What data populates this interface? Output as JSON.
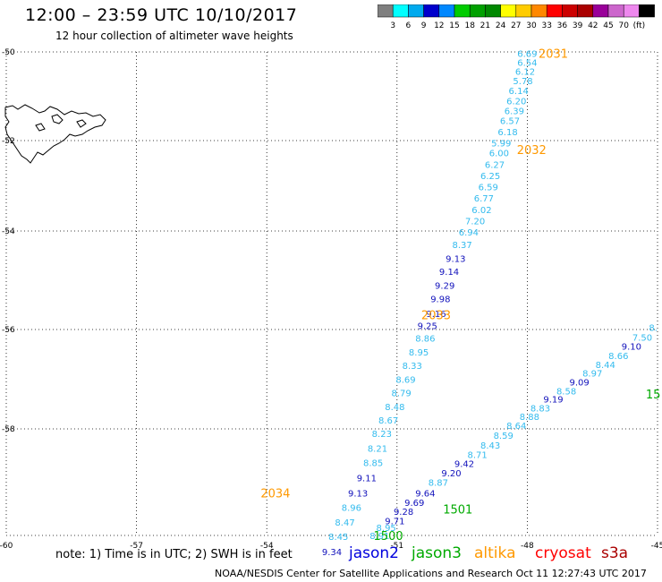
{
  "header": {
    "title": "12:00 – 23:59 UTC 10/10/2017",
    "subtitle": "12 hour collection of altimeter wave heights"
  },
  "colorbar": {
    "labels": [
      "3",
      "6",
      "9",
      "12",
      "15",
      "18",
      "21",
      "24",
      "27",
      "30",
      "33",
      "36",
      "39",
      "42",
      "45",
      "70",
      "(ft)"
    ],
    "colors": [
      "#7f7f7f",
      "#00ffff",
      "#00aaee",
      "#0000cc",
      "#0088ff",
      "#00cc00",
      "#00a000",
      "#008800",
      "#ffff00",
      "#ffcc00",
      "#ff8800",
      "#ff0000",
      "#cc0000",
      "#aa0000",
      "#990099",
      "#cc66cc",
      "#ee88ee",
      "#000000"
    ]
  },
  "footer": {
    "note": "note: 1) Time is in UTC; 2) SWH is in feet",
    "credit": "NOAA/NESDIS Center for Satellite Applications and Research     Oct 11 12:27:43 UTC 2017",
    "satellites": [
      {
        "name": "jason2",
        "color": "#0000dd"
      },
      {
        "name": "jason3",
        "color": "#00aa00"
      },
      {
        "name": "altika",
        "color": "#ff9900"
      },
      {
        "name": "cryosat",
        "color": "#ff0000"
      },
      {
        "name": "s3a",
        "color": "#aa0000"
      }
    ]
  },
  "chart_data": {
    "type": "scatter",
    "xlim": [
      -60,
      -45
    ],
    "ylim": [
      -60,
      -50
    ],
    "x_ticks": [
      "-60",
      "-57",
      "-54",
      "-51",
      "-48",
      "-45"
    ],
    "y_ticks": [
      "-50",
      "-52",
      "-54",
      "-56",
      "-58",
      "-60"
    ],
    "grid": true,
    "track_labels": [
      {
        "text": "2031",
        "lon": -47.4,
        "lat": -50.03,
        "color": "#ff9900"
      },
      {
        "text": "2032",
        "lon": -47.9,
        "lat": -52.2,
        "color": "#ff9900"
      },
      {
        "text": "2033",
        "lon": -50.1,
        "lat": -55.7,
        "color": "#ff9900"
      },
      {
        "text": "2034",
        "lon": -53.8,
        "lat": -59.2,
        "color": "#ff9900"
      },
      {
        "text": "1501",
        "lon": -49.6,
        "lat": -59.5,
        "color": "#00aa00"
      },
      {
        "text": "1500",
        "lon": -51.2,
        "lat": -60.0,
        "color": "#00aa00"
      },
      {
        "text": "15",
        "lon": -45.1,
        "lat": -57.3,
        "color": "#00aa00"
      }
    ],
    "series": [
      {
        "name": "altika",
        "points": [
          {
            "lon": -48.0,
            "lat": -50.03,
            "v": "6.69",
            "c": "#33bbee"
          },
          {
            "lon": -48.0,
            "lat": -50.23,
            "v": "6.54",
            "c": "#33bbee"
          },
          {
            "lon": -48.05,
            "lat": -50.43,
            "v": "6.12",
            "c": "#33bbee"
          },
          {
            "lon": -48.1,
            "lat": -50.65,
            "v": "5.78",
            "c": "#33bbee"
          },
          {
            "lon": -48.2,
            "lat": -50.87,
            "v": "6.14",
            "c": "#33bbee"
          },
          {
            "lon": -48.25,
            "lat": -51.1,
            "v": "6.20",
            "c": "#33bbee"
          },
          {
            "lon": -48.3,
            "lat": -51.32,
            "v": "6.39",
            "c": "#33bbee"
          },
          {
            "lon": -48.4,
            "lat": -51.55,
            "v": "6.57",
            "c": "#33bbee"
          },
          {
            "lon": -48.45,
            "lat": -51.8,
            "v": "6.18",
            "c": "#33bbee"
          },
          {
            "lon": -48.6,
            "lat": -52.05,
            "v": "5.99",
            "c": "#33bbee"
          },
          {
            "lon": -48.65,
            "lat": -52.27,
            "v": "6.00",
            "c": "#33bbee"
          },
          {
            "lon": -48.75,
            "lat": -52.52,
            "v": "6.27",
            "c": "#33bbee"
          },
          {
            "lon": -48.85,
            "lat": -52.77,
            "v": "6.25",
            "c": "#33bbee"
          },
          {
            "lon": -48.9,
            "lat": -53.02,
            "v": "6.59",
            "c": "#33bbee"
          },
          {
            "lon": -49.0,
            "lat": -53.27,
            "v": "6.77",
            "c": "#33bbee"
          },
          {
            "lon": -49.05,
            "lat": -53.52,
            "v": "6.02",
            "c": "#33bbee"
          },
          {
            "lon": -49.2,
            "lat": -53.77,
            "v": "7.20",
            "c": "#33bbee"
          },
          {
            "lon": -49.35,
            "lat": -54.02,
            "v": "6.94",
            "c": "#33bbee"
          },
          {
            "lon": -49.5,
            "lat": -54.27,
            "v": "8.37",
            "c": "#33bbee"
          },
          {
            "lon": -49.65,
            "lat": -54.55,
            "v": "9.13",
            "c": "#1111bb"
          },
          {
            "lon": -49.8,
            "lat": -54.82,
            "v": "9.14",
            "c": "#1111bb"
          },
          {
            "lon": -49.9,
            "lat": -55.1,
            "v": "9.29",
            "c": "#1111bb"
          },
          {
            "lon": -50.0,
            "lat": -55.37,
            "v": "9.98",
            "c": "#1111bb"
          },
          {
            "lon": -50.1,
            "lat": -55.67,
            "v": "9.16",
            "c": "#1111bb"
          },
          {
            "lon": -50.3,
            "lat": -55.92,
            "v": "9.25",
            "c": "#1111bb"
          },
          {
            "lon": -50.35,
            "lat": -56.17,
            "v": "8.86",
            "c": "#33bbee"
          },
          {
            "lon": -50.5,
            "lat": -56.45,
            "v": "8.95",
            "c": "#33bbee"
          },
          {
            "lon": -50.65,
            "lat": -56.72,
            "v": "8.33",
            "c": "#33bbee"
          },
          {
            "lon": -50.8,
            "lat": -57.0,
            "v": "8.69",
            "c": "#33bbee"
          },
          {
            "lon": -50.9,
            "lat": -57.27,
            "v": "8.79",
            "c": "#33bbee"
          },
          {
            "lon": -51.05,
            "lat": -57.55,
            "v": "8.48",
            "c": "#33bbee"
          },
          {
            "lon": -51.2,
            "lat": -57.82,
            "v": "8.67",
            "c": "#33bbee"
          },
          {
            "lon": -51.35,
            "lat": -58.08,
            "v": "8.23",
            "c": "#33bbee"
          },
          {
            "lon": -51.45,
            "lat": -58.36,
            "v": "8.21",
            "c": "#33bbee"
          },
          {
            "lon": -51.55,
            "lat": -58.63,
            "v": "8.85",
            "c": "#33bbee"
          },
          {
            "lon": -51.7,
            "lat": -58.92,
            "v": "9.11",
            "c": "#1111bb"
          },
          {
            "lon": -51.9,
            "lat": -59.2,
            "v": "9.13",
            "c": "#1111bb"
          },
          {
            "lon": -52.05,
            "lat": -59.47,
            "v": "8.96",
            "c": "#33bbee"
          },
          {
            "lon": -52.2,
            "lat": -59.75,
            "v": "8.47",
            "c": "#33bbee"
          },
          {
            "lon": -52.35,
            "lat": -60.02,
            "v": "8.45",
            "c": "#33bbee"
          },
          {
            "lon": -52.5,
            "lat": -60.3,
            "v": "9.34",
            "c": "#1111bb"
          }
        ]
      },
      {
        "name": "jason3",
        "points": [
          {
            "lon": -51.4,
            "lat": -60.0,
            "v": "8.91",
            "c": "#33bbee"
          },
          {
            "lon": -51.25,
            "lat": -59.85,
            "v": "8.95",
            "c": "#33bbee"
          },
          {
            "lon": -51.05,
            "lat": -59.72,
            "v": "9.71",
            "c": "#1111bb"
          },
          {
            "lon": -50.85,
            "lat": -59.55,
            "v": "9.28",
            "c": "#1111bb"
          },
          {
            "lon": -50.6,
            "lat": -59.38,
            "v": "9.69",
            "c": "#1111bb"
          },
          {
            "lon": -50.35,
            "lat": -59.2,
            "v": "9.64",
            "c": "#1111bb"
          },
          {
            "lon": -50.05,
            "lat": -59.0,
            "v": "8.87",
            "c": "#33bbee"
          },
          {
            "lon": -49.75,
            "lat": -58.82,
            "v": "9.20",
            "c": "#1111bb"
          },
          {
            "lon": -49.45,
            "lat": -58.65,
            "v": "9.42",
            "c": "#1111bb"
          },
          {
            "lon": -49.15,
            "lat": -58.48,
            "v": "8.71",
            "c": "#33bbee"
          },
          {
            "lon": -48.85,
            "lat": -58.3,
            "v": "8.43",
            "c": "#33bbee"
          },
          {
            "lon": -48.55,
            "lat": -58.12,
            "v": "8.59",
            "c": "#33bbee"
          },
          {
            "lon": -48.25,
            "lat": -57.93,
            "v": "8.64",
            "c": "#33bbee"
          },
          {
            "lon": -47.95,
            "lat": -57.75,
            "v": "8.88",
            "c": "#33bbee"
          },
          {
            "lon": -47.7,
            "lat": -57.58,
            "v": "8.83",
            "c": "#33bbee"
          },
          {
            "lon": -47.4,
            "lat": -57.4,
            "v": "9.19",
            "c": "#1111bb"
          },
          {
            "lon": -47.1,
            "lat": -57.23,
            "v": "8.58",
            "c": "#33bbee"
          },
          {
            "lon": -46.8,
            "lat": -57.05,
            "v": "9.09",
            "c": "#1111bb"
          },
          {
            "lon": -46.5,
            "lat": -56.87,
            "v": "8.97",
            "c": "#33bbee"
          },
          {
            "lon": -46.2,
            "lat": -56.7,
            "v": "8.44",
            "c": "#33bbee"
          },
          {
            "lon": -45.9,
            "lat": -56.52,
            "v": "8.66",
            "c": "#33bbee"
          },
          {
            "lon": -45.6,
            "lat": -56.33,
            "v": "9.10",
            "c": "#1111bb"
          },
          {
            "lon": -45.35,
            "lat": -56.15,
            "v": "7.50",
            "c": "#33bbee"
          },
          {
            "lon": -45.1,
            "lat": -55.95,
            "v": "8.",
            "c": "#33bbee"
          }
        ]
      }
    ]
  }
}
